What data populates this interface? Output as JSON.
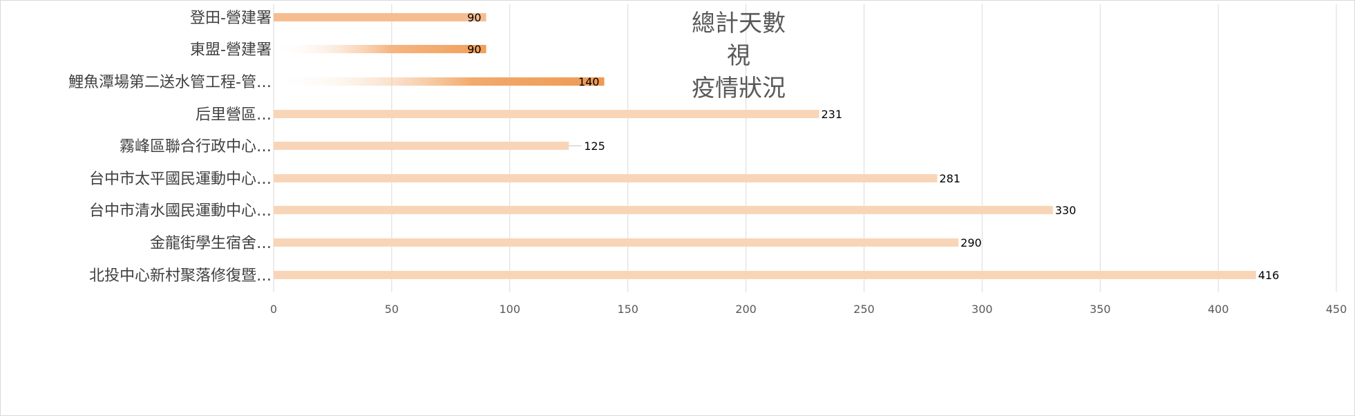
{
  "chart_data": {
    "type": "bar",
    "orientation": "horizontal",
    "title_lines": [
      "總計天數",
      "視",
      "疫情狀況"
    ],
    "categories": [
      "登田-營建署",
      "東盟-營建署",
      "鯉魚潭場第二送水管工程-管…",
      "后里營區…",
      "霧峰區聯合行政中心…",
      "台中市太平國民運動中心…",
      "台中市清水國民運動中心…",
      "金龍街學生宿舍…",
      "北投中心新村聚落修復暨…"
    ],
    "values": [
      90,
      90,
      140,
      231,
      125,
      281,
      330,
      290,
      416
    ],
    "data_labels": [
      "90",
      "90",
      "140",
      "231",
      "125",
      "281",
      "330",
      "290",
      "416"
    ],
    "xlim": [
      0,
      450
    ],
    "x_ticks": [
      "0",
      "50",
      "100",
      "150",
      "200",
      "250",
      "300",
      "350",
      "400",
      "450"
    ],
    "grid": "vertical",
    "legend": "none",
    "colors": {
      "bar_light": "#f9d5b7",
      "bar_mid": "#f6bd91",
      "bar_dark": "#f0a460",
      "gridline": "#d9d9d9",
      "axis_text": "#595959",
      "title_text": "#595959",
      "category_text": "#404040",
      "label_text": "#000000"
    }
  }
}
